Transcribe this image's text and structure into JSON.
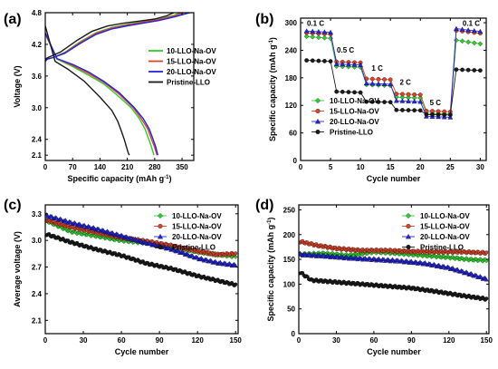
{
  "colors": {
    "s10": "#2ecc2e",
    "s15": "#d9442a",
    "s20": "#2424e0",
    "pristine": "#1a1a1a"
  },
  "chart_data": [
    {
      "id": "a",
      "panel_label": "(a)",
      "type": "line",
      "xlabel": "Specific capacity (mAh g",
      "xlabel_sup": "-1",
      "xlabel_end": ")",
      "ylabel": "Voltage (V)",
      "xlim": [
        0,
        380
      ],
      "ylim": [
        2.0,
        4.8
      ],
      "xticks": [
        0,
        70,
        140,
        210,
        280,
        350
      ],
      "yticks": [
        2.1,
        2.4,
        3.0,
        3.6,
        4.2,
        4.8
      ],
      "legend_position": "right-middle",
      "series": [
        {
          "name": "10-LLO-Na-OV",
          "color_key": "s10",
          "segments": [
            {
              "x": [
                0,
                5,
                20,
                50,
                90,
                130,
                170,
                210,
                250,
                290,
                330,
                345
              ],
              "y": [
                3.88,
                3.92,
                3.95,
                4.05,
                4.25,
                4.42,
                4.52,
                4.58,
                4.63,
                4.68,
                4.75,
                4.8
              ]
            },
            {
              "x": [
                0,
                30,
                70,
                110,
                150,
                190,
                220,
                240,
                255,
                265,
                272,
                278
              ],
              "y": [
                4.4,
                3.92,
                3.78,
                3.62,
                3.45,
                3.2,
                3.0,
                2.8,
                2.6,
                2.4,
                2.25,
                2.1
              ]
            }
          ]
        },
        {
          "name": "15-LLO-Na-OV",
          "color_key": "s15",
          "segments": [
            {
              "x": [
                0,
                5,
                20,
                50,
                90,
                130,
                170,
                210,
                250,
                290,
                330,
                355
              ],
              "y": [
                3.88,
                3.92,
                3.95,
                4.04,
                4.24,
                4.41,
                4.51,
                4.57,
                4.62,
                4.67,
                4.74,
                4.8
              ]
            },
            {
              "x": [
                0,
                30,
                70,
                110,
                150,
                190,
                225,
                245,
                262,
                272,
                280,
                286
              ],
              "y": [
                4.4,
                3.93,
                3.8,
                3.65,
                3.48,
                3.25,
                3.0,
                2.8,
                2.6,
                2.4,
                2.25,
                2.1
              ]
            }
          ]
        },
        {
          "name": "20-LLO-Na-OV",
          "color_key": "s20",
          "segments": [
            {
              "x": [
                0,
                5,
                20,
                50,
                90,
                130,
                170,
                210,
                250,
                290,
                330,
                370
              ],
              "y": [
                3.88,
                3.92,
                3.95,
                4.03,
                4.22,
                4.39,
                4.49,
                4.55,
                4.6,
                4.65,
                4.72,
                4.8
              ]
            },
            {
              "x": [
                0,
                30,
                70,
                110,
                150,
                190,
                228,
                250,
                266,
                276,
                283,
                288
              ],
              "y": [
                4.42,
                3.93,
                3.82,
                3.68,
                3.5,
                3.28,
                3.0,
                2.8,
                2.6,
                2.4,
                2.25,
                2.1
              ]
            }
          ]
        },
        {
          "name": "Pristine-LLO",
          "color_key": "pristine",
          "segments": [
            {
              "x": [
                0,
                2,
                10,
                40,
                80,
                120,
                160,
                200,
                240,
                280,
                310,
                335
              ],
              "y": [
                3.88,
                3.93,
                3.96,
                4.06,
                4.27,
                4.45,
                4.55,
                4.6,
                4.64,
                4.68,
                4.74,
                4.82
              ]
            },
            {
              "x": [
                0,
                25,
                60,
                100,
                140,
                170,
                185,
                195,
                202,
                208,
                212,
                215
              ],
              "y": [
                4.55,
                3.88,
                3.72,
                3.5,
                3.2,
                2.95,
                2.75,
                2.55,
                2.4,
                2.25,
                2.15,
                2.1
              ]
            }
          ]
        }
      ]
    },
    {
      "id": "b",
      "panel_label": "(b)",
      "type": "scatter",
      "xlabel": "Cycle number",
      "ylabel": "Specific capacity (mAh g",
      "ylabel_sup": "-1",
      "ylabel_end": ")",
      "xlim": [
        0,
        31
      ],
      "ylim": [
        0,
        310
      ],
      "xticks": [
        0,
        5,
        10,
        15,
        20,
        25,
        30
      ],
      "yticks": [
        0,
        60,
        120,
        180,
        240,
        300
      ],
      "legend_position": "bottom-left",
      "annotations": [
        {
          "text": "0.1 C",
          "x": 2.5,
          "y": 293
        },
        {
          "text": "0.5 C",
          "x": 7.5,
          "y": 235
        },
        {
          "text": "1 C",
          "x": 12.8,
          "y": 195
        },
        {
          "text": "2 C",
          "x": 17.5,
          "y": 165
        },
        {
          "text": "5 C",
          "x": 22.5,
          "y": 120
        },
        {
          "text": "0.1 C",
          "x": 28.5,
          "y": 293
        }
      ],
      "series": [
        {
          "name": "10-LLO-Na-OV",
          "color_key": "s10",
          "marker": "diamond",
          "rate_levels": [
            270,
            205,
            165,
            138,
            103,
            262
          ],
          "fade": [
            4,
            2,
            2,
            2,
            2,
            8
          ]
        },
        {
          "name": "15-LLO-Na-OV",
          "color_key": "s15",
          "marker": "circle",
          "rate_levels": [
            278,
            215,
            178,
            145,
            108,
            283
          ],
          "fade": [
            3,
            2,
            2,
            2,
            2,
            6
          ]
        },
        {
          "name": "20-LLO-Na-OV",
          "color_key": "s20",
          "marker": "triangle",
          "rate_levels": [
            282,
            210,
            168,
            130,
            96,
            287
          ],
          "fade": [
            3,
            2,
            2,
            2,
            2,
            6
          ]
        },
        {
          "name": "Pristine-LLO",
          "color_key": "pristine",
          "marker": "circle",
          "rate_levels": [
            218,
            150,
            128,
            110,
            100,
            198
          ],
          "fade": [
            2,
            2,
            1,
            1,
            1,
            2
          ]
        }
      ]
    },
    {
      "id": "c",
      "panel_label": "(c)",
      "type": "scatter",
      "xlabel": "Cycle number",
      "ylabel": "Average voltage (V)",
      "xlim": [
        0,
        152
      ],
      "ylim": [
        1.95,
        3.4
      ],
      "xticks": [
        0,
        30,
        60,
        90,
        120,
        150
      ],
      "yticks": [
        2.1,
        2.4,
        2.7,
        3.0,
        3.3
      ],
      "legend_position": "top-right",
      "series": [
        {
          "name": "10-LLO-Na-OV",
          "color_key": "s10",
          "marker": "diamond",
          "points": [
            [
              1,
              3.22
            ],
            [
              20,
              3.1
            ],
            [
              40,
              3.05
            ],
            [
              60,
              3.0
            ],
            [
              80,
              2.97
            ],
            [
              100,
              2.93
            ],
            [
              120,
              2.87
            ],
            [
              135,
              2.84
            ],
            [
              150,
              2.82
            ]
          ]
        },
        {
          "name": "15-LLO-Na-OV",
          "color_key": "s15",
          "marker": "circle",
          "points": [
            [
              1,
              3.23
            ],
            [
              20,
              3.15
            ],
            [
              40,
              3.09
            ],
            [
              60,
              3.03
            ],
            [
              80,
              2.99
            ],
            [
              100,
              2.94
            ],
            [
              120,
              2.88
            ],
            [
              135,
              2.84
            ],
            [
              150,
              2.85
            ]
          ]
        },
        {
          "name": "20-LLO-Na-OV",
          "color_key": "s20",
          "marker": "triangle",
          "points": [
            [
              1,
              3.28
            ],
            [
              20,
              3.2
            ],
            [
              40,
              3.13
            ],
            [
              60,
              3.05
            ],
            [
              80,
              2.97
            ],
            [
              100,
              2.9
            ],
            [
              120,
              2.8
            ],
            [
              135,
              2.75
            ],
            [
              150,
              2.72
            ]
          ]
        },
        {
          "name": "Pristine-LLO",
          "color_key": "pristine",
          "marker": "circle",
          "points": [
            [
              1,
              3.07
            ],
            [
              20,
              2.98
            ],
            [
              40,
              2.9
            ],
            [
              60,
              2.83
            ],
            [
              80,
              2.74
            ],
            [
              100,
              2.68
            ],
            [
              120,
              2.6
            ],
            [
              135,
              2.55
            ],
            [
              150,
              2.5
            ]
          ]
        }
      ]
    },
    {
      "id": "d",
      "panel_label": "(d)",
      "type": "scatter",
      "xlabel": "Cycle number",
      "ylabel": "Specific capacity (mAh g",
      "ylabel_sup": "-1",
      "ylabel_end": ")",
      "xlim": [
        0,
        152
      ],
      "ylim": [
        0,
        260
      ],
      "xticks": [
        0,
        30,
        60,
        90,
        120,
        150
      ],
      "yticks": [
        0,
        50,
        100,
        150,
        200,
        250
      ],
      "legend_position": "top-right",
      "series": [
        {
          "name": "10-LLO-Na-OV",
          "color_key": "s10",
          "marker": "diamond",
          "points": [
            [
              1,
              160
            ],
            [
              20,
              162
            ],
            [
              40,
              158
            ],
            [
              60,
              165
            ],
            [
              80,
              162
            ],
            [
              100,
              158
            ],
            [
              120,
              154
            ],
            [
              135,
              150
            ],
            [
              150,
              148
            ]
          ]
        },
        {
          "name": "15-LLO-Na-OV",
          "color_key": "s15",
          "marker": "circle",
          "points": [
            [
              1,
              186
            ],
            [
              15,
              178
            ],
            [
              30,
              172
            ],
            [
              50,
              168
            ],
            [
              70,
              168
            ],
            [
              90,
              166
            ],
            [
              110,
              165
            ],
            [
              130,
              165
            ],
            [
              150,
              163
            ]
          ]
        },
        {
          "name": "20-LLO-Na-OV",
          "color_key": "s20",
          "marker": "triangle",
          "points": [
            [
              1,
              160
            ],
            [
              20,
              157
            ],
            [
              40,
              153
            ],
            [
              60,
              150
            ],
            [
              80,
              147
            ],
            [
              100,
              142
            ],
            [
              120,
              133
            ],
            [
              135,
              122
            ],
            [
              150,
              110
            ]
          ]
        },
        {
          "name": "Pristine-LLO",
          "color_key": "pristine",
          "marker": "circle",
          "points": [
            [
              1,
              124
            ],
            [
              10,
              108
            ],
            [
              30,
              104
            ],
            [
              50,
              100
            ],
            [
              70,
              96
            ],
            [
              90,
              92
            ],
            [
              110,
              85
            ],
            [
              130,
              77
            ],
            [
              150,
              70
            ]
          ]
        }
      ]
    }
  ]
}
